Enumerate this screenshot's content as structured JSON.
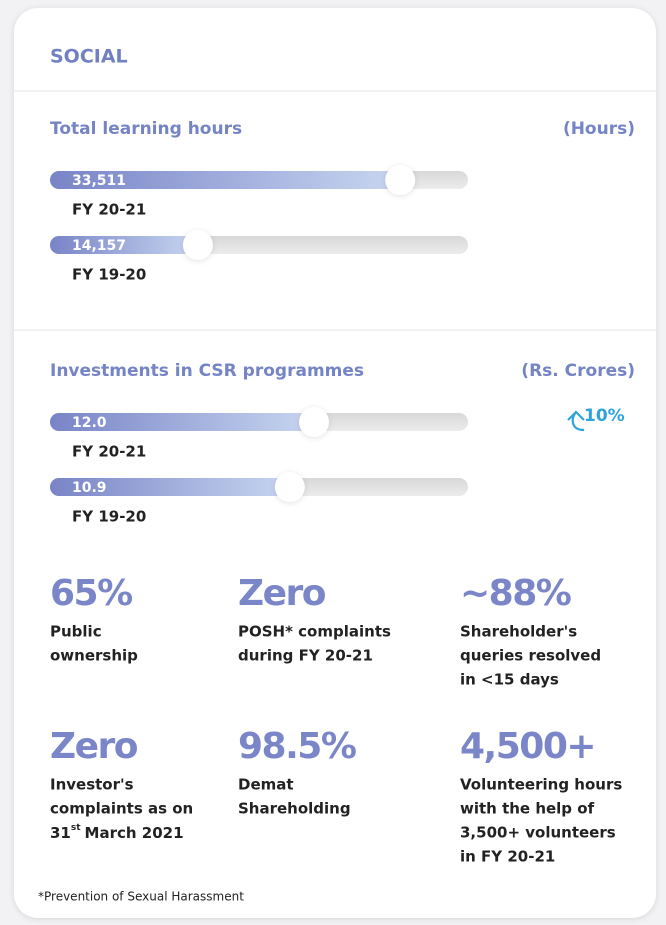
{
  "header": {
    "title": "SOCIAL"
  },
  "chart_data": [
    {
      "type": "bar",
      "orientation": "horizontal",
      "title": "Total learning hours",
      "unit_label": "(Hours)",
      "categories": [
        "FY 20-21",
        "FY 19-20"
      ],
      "values": [
        33511,
        14157
      ],
      "value_labels": [
        "33,511",
        "14,157"
      ],
      "xlim": [
        0,
        40000
      ]
    },
    {
      "type": "bar",
      "orientation": "horizontal",
      "title": "Investments in CSR programmes",
      "unit_label": "(Rs. Crores)",
      "annotation": "10%",
      "categories": [
        "FY 20-21",
        "FY 19-20"
      ],
      "values": [
        12.0,
        10.9
      ],
      "value_labels": [
        "12.0",
        "10.9"
      ],
      "xlim": [
        0,
        19
      ]
    }
  ],
  "stats": [
    {
      "value": "65%",
      "lines": [
        "Public",
        "ownership"
      ]
    },
    {
      "value": "Zero",
      "lines": [
        "POSH* complaints",
        "during FY 20-21"
      ]
    },
    {
      "value": "~88%",
      "lines": [
        "Shareholder's",
        "queries resolved",
        "in <15 days"
      ]
    },
    {
      "value": "Zero",
      "lines": [
        "Investor's",
        "complaints as on",
        [
          "31",
          "st",
          "March 2021"
        ]
      ]
    },
    {
      "value": "98.5%",
      "lines": [
        "Demat",
        "Shareholding"
      ]
    },
    {
      "value": "4,500+",
      "lines": [
        "Volunteering hours",
        "with the help of",
        "3,500+ volunteers",
        "in FY 20-21"
      ]
    }
  ],
  "footnote": "*Prevention of Sexual Harassment"
}
